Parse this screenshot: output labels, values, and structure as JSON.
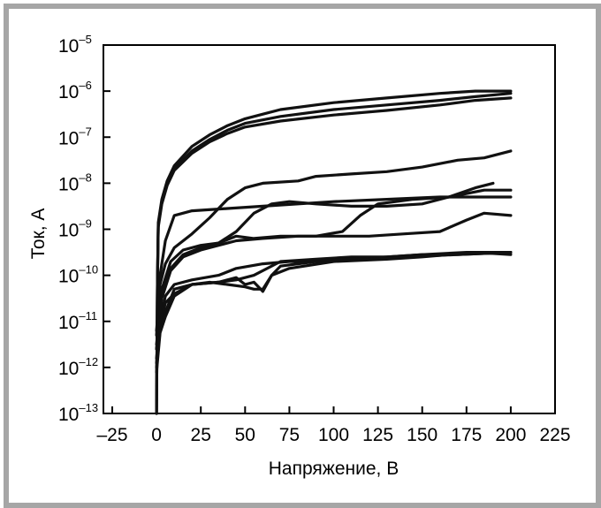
{
  "chart_data": {
    "type": "line",
    "xlabel": "Напряжение, В",
    "ylabel": "Ток, А",
    "xlim": [
      -30,
      225
    ],
    "ylim_exp": [
      -13,
      -5
    ],
    "yscale": "log",
    "xticks": [
      -25,
      0,
      25,
      50,
      75,
      100,
      125,
      150,
      175,
      200,
      225
    ],
    "xtick_labels": [
      "–25",
      "0",
      "25",
      "50",
      "75",
      "100",
      "125",
      "150",
      "175",
      "200",
      "225"
    ],
    "yticks": [
      {
        "base": "10",
        "exp": "–5"
      },
      {
        "base": "10",
        "exp": "–6"
      },
      {
        "base": "10",
        "exp": "–7"
      },
      {
        "base": "10",
        "exp": "–8"
      },
      {
        "base": "10",
        "exp": "–9"
      },
      {
        "base": "10",
        "exp": "–10"
      },
      {
        "base": "10",
        "exp": "–11"
      },
      {
        "base": "10",
        "exp": "–12"
      },
      {
        "base": "10",
        "exp": "–13"
      }
    ],
    "grid": false,
    "line_color": "#111111",
    "series": [
      {
        "values": [
          [
            0,
            -13
          ],
          [
            0.5,
            -10.2
          ],
          [
            1,
            -8.85
          ],
          [
            3,
            -8.35
          ],
          [
            6,
            -7.95
          ],
          [
            10,
            -7.62
          ],
          [
            20,
            -7.2
          ],
          [
            30,
            -6.95
          ],
          [
            40,
            -6.75
          ],
          [
            50,
            -6.6
          ],
          [
            70,
            -6.4
          ],
          [
            100,
            -6.25
          ],
          [
            130,
            -6.15
          ],
          [
            160,
            -6.05
          ],
          [
            180,
            -6.0
          ],
          [
            200,
            -6.0
          ]
        ]
      },
      {
        "values": [
          [
            0,
            -13
          ],
          [
            0.5,
            -10.2
          ],
          [
            1,
            -8.9
          ],
          [
            3,
            -8.4
          ],
          [
            6,
            -8.0
          ],
          [
            10,
            -7.68
          ],
          [
            20,
            -7.3
          ],
          [
            30,
            -7.05
          ],
          [
            40,
            -6.85
          ],
          [
            50,
            -6.7
          ],
          [
            70,
            -6.55
          ],
          [
            100,
            -6.4
          ],
          [
            130,
            -6.3
          ],
          [
            160,
            -6.2
          ],
          [
            180,
            -6.12
          ],
          [
            200,
            -6.05
          ]
        ]
      },
      {
        "values": [
          [
            0,
            -13
          ],
          [
            0.5,
            -10.2
          ],
          [
            1,
            -8.95
          ],
          [
            3,
            -8.45
          ],
          [
            6,
            -8.05
          ],
          [
            10,
            -7.72
          ],
          [
            20,
            -7.35
          ],
          [
            30,
            -7.1
          ],
          [
            40,
            -6.92
          ],
          [
            50,
            -6.78
          ],
          [
            70,
            -6.65
          ],
          [
            100,
            -6.52
          ],
          [
            130,
            -6.42
          ],
          [
            160,
            -6.3
          ],
          [
            180,
            -6.2
          ],
          [
            200,
            -6.15
          ]
        ]
      },
      {
        "values": [
          [
            0,
            -11.2
          ],
          [
            2,
            -10.2
          ],
          [
            5,
            -9.75
          ],
          [
            10,
            -9.4
          ],
          [
            20,
            -9.1
          ],
          [
            30,
            -8.75
          ],
          [
            40,
            -8.35
          ],
          [
            50,
            -8.1
          ],
          [
            60,
            -8.0
          ],
          [
            80,
            -7.95
          ],
          [
            90,
            -7.85
          ],
          [
            110,
            -7.8
          ],
          [
            130,
            -7.75
          ],
          [
            150,
            -7.65
          ],
          [
            170,
            -7.5
          ],
          [
            185,
            -7.45
          ],
          [
            200,
            -7.3
          ]
        ]
      },
      {
        "values": [
          [
            0,
            -11.3
          ],
          [
            2,
            -10.0
          ],
          [
            5,
            -9.25
          ],
          [
            10,
            -8.7
          ],
          [
            20,
            -8.6
          ],
          [
            40,
            -8.55
          ],
          [
            60,
            -8.5
          ],
          [
            80,
            -8.45
          ],
          [
            100,
            -8.4
          ],
          [
            130,
            -8.35
          ],
          [
            160,
            -8.3
          ],
          [
            185,
            -8.3
          ],
          [
            200,
            -8.3
          ]
        ]
      },
      {
        "values": [
          [
            0,
            -11.5
          ],
          [
            3,
            -10.3
          ],
          [
            8,
            -9.7
          ],
          [
            15,
            -9.45
          ],
          [
            25,
            -9.35
          ],
          [
            35,
            -9.3
          ],
          [
            45,
            -9.05
          ],
          [
            55,
            -8.65
          ],
          [
            65,
            -8.45
          ],
          [
            75,
            -8.4
          ],
          [
            90,
            -8.45
          ],
          [
            110,
            -8.5
          ],
          [
            130,
            -8.5
          ],
          [
            150,
            -8.45
          ],
          [
            165,
            -8.3
          ],
          [
            180,
            -8.1
          ],
          [
            190,
            -8.0
          ]
        ]
      },
      {
        "values": [
          [
            0,
            -11.6
          ],
          [
            3,
            -10.4
          ],
          [
            8,
            -9.85
          ],
          [
            15,
            -9.55
          ],
          [
            25,
            -9.4
          ],
          [
            35,
            -9.3
          ],
          [
            45,
            -9.15
          ],
          [
            55,
            -9.2
          ],
          [
            70,
            -9.15
          ],
          [
            90,
            -9.15
          ],
          [
            105,
            -9.05
          ],
          [
            115,
            -8.7
          ],
          [
            125,
            -8.45
          ],
          [
            145,
            -8.35
          ],
          [
            165,
            -8.3
          ],
          [
            185,
            -8.15
          ],
          [
            200,
            -8.15
          ]
        ]
      },
      {
        "values": [
          [
            0,
            -11.6
          ],
          [
            3,
            -10.5
          ],
          [
            8,
            -9.9
          ],
          [
            15,
            -9.6
          ],
          [
            25,
            -9.45
          ],
          [
            35,
            -9.35
          ],
          [
            45,
            -9.25
          ],
          [
            60,
            -9.2
          ],
          [
            80,
            -9.15
          ],
          [
            100,
            -9.15
          ],
          [
            120,
            -9.15
          ],
          [
            140,
            -9.1
          ],
          [
            160,
            -9.05
          ],
          [
            175,
            -8.8
          ],
          [
            185,
            -8.65
          ],
          [
            200,
            -8.7
          ]
        ]
      },
      {
        "values": [
          [
            0,
            -11.8
          ],
          [
            2,
            -11.0
          ],
          [
            5,
            -10.45
          ],
          [
            10,
            -10.2
          ],
          [
            20,
            -10.1
          ],
          [
            35,
            -10.0
          ],
          [
            45,
            -9.85
          ],
          [
            60,
            -9.75
          ],
          [
            75,
            -9.7
          ],
          [
            90,
            -9.7
          ],
          [
            110,
            -9.65
          ],
          [
            130,
            -9.6
          ],
          [
            150,
            -9.55
          ],
          [
            170,
            -9.55
          ],
          [
            200,
            -9.5
          ]
        ]
      },
      {
        "values": [
          [
            0,
            -11.9
          ],
          [
            2,
            -11.1
          ],
          [
            5,
            -10.6
          ],
          [
            10,
            -10.4
          ],
          [
            20,
            -10.2
          ],
          [
            35,
            -10.15
          ],
          [
            45,
            -10.1
          ],
          [
            55,
            -10.0
          ],
          [
            70,
            -9.7
          ],
          [
            90,
            -9.65
          ],
          [
            110,
            -9.6
          ],
          [
            130,
            -9.6
          ],
          [
            150,
            -9.55
          ],
          [
            175,
            -9.5
          ],
          [
            200,
            -9.5
          ]
        ]
      },
      {
        "values": [
          [
            0,
            -12.0
          ],
          [
            2,
            -11.2
          ],
          [
            5,
            -10.8
          ],
          [
            10,
            -10.3
          ],
          [
            20,
            -10.2
          ],
          [
            30,
            -10.15
          ],
          [
            40,
            -10.2
          ],
          [
            50,
            -10.25
          ],
          [
            55,
            -10.3
          ],
          [
            60,
            -10.3
          ],
          [
            65,
            -10.0
          ],
          [
            70,
            -9.8
          ],
          [
            90,
            -9.7
          ],
          [
            110,
            -9.65
          ],
          [
            140,
            -9.6
          ],
          [
            170,
            -9.55
          ],
          [
            200,
            -9.5
          ]
        ]
      },
      {
        "values": [
          [
            0,
            -12.1
          ],
          [
            2,
            -11.25
          ],
          [
            5,
            -10.9
          ],
          [
            10,
            -10.45
          ],
          [
            20,
            -10.2
          ],
          [
            35,
            -10.15
          ],
          [
            45,
            -10.05
          ],
          [
            50,
            -10.2
          ],
          [
            55,
            -10.15
          ],
          [
            60,
            -10.35
          ],
          [
            65,
            -10.0
          ],
          [
            75,
            -9.85
          ],
          [
            100,
            -9.7
          ],
          [
            130,
            -9.65
          ],
          [
            150,
            -9.6
          ],
          [
            180,
            -9.5
          ],
          [
            200,
            -9.55
          ]
        ]
      }
    ]
  }
}
